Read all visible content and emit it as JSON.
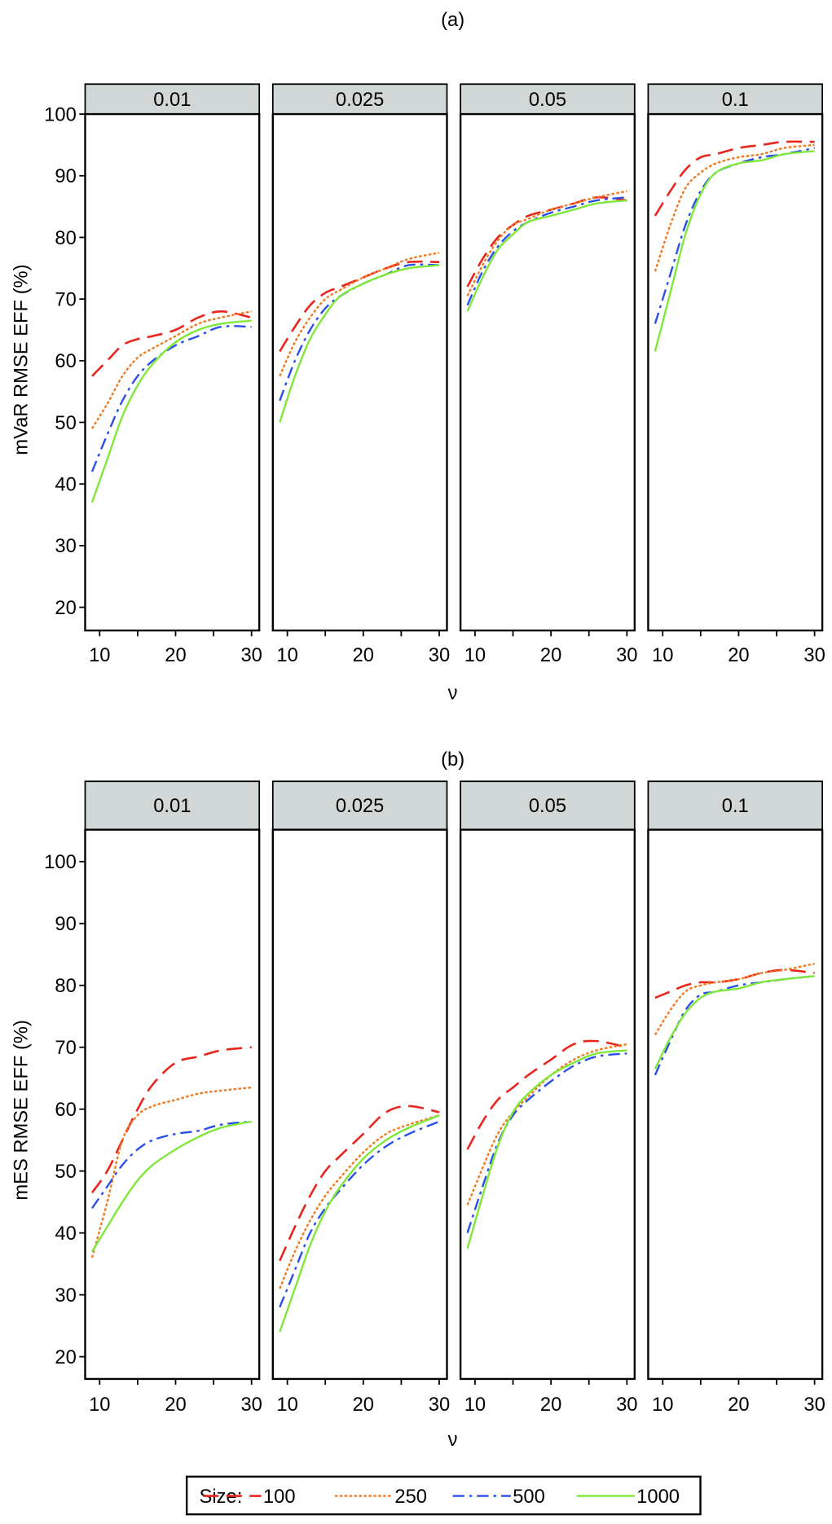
{
  "chart_data": [
    {
      "type": "line",
      "title": "(a)",
      "xlabel": "ν",
      "ylabel": "mVaR RMSE EFF (%)",
      "ylim": [
        16,
        104
      ],
      "xlim": [
        8,
        31
      ],
      "yticks": [
        20,
        30,
        40,
        50,
        60,
        70,
        80,
        90,
        100
      ],
      "xticks": [
        10,
        20,
        30
      ],
      "x": [
        9,
        11,
        13,
        15,
        17,
        20,
        23,
        26,
        30
      ],
      "panels": [
        {
          "label": "0.01",
          "series": [
            {
              "name": "100",
              "values": [
                57.5,
                60,
                62.5,
                63.5,
                64,
                65,
                67,
                68,
                67
              ]
            },
            {
              "name": "250",
              "values": [
                49,
                53,
                57.5,
                60.5,
                62,
                64,
                66,
                67,
                68
              ]
            },
            {
              "name": "500",
              "values": [
                42,
                48,
                53.5,
                57.5,
                60,
                62.5,
                64,
                65.5,
                65.5
              ]
            },
            {
              "name": "1000",
              "values": [
                37,
                44,
                51,
                56,
                59.5,
                63,
                65,
                66,
                66.5
              ]
            }
          ]
        },
        {
          "label": "0.025",
          "series": [
            {
              "name": "100",
              "values": [
                61.5,
                65.5,
                69,
                71,
                72,
                73.5,
                75,
                76,
                76
              ]
            },
            {
              "name": "250",
              "values": [
                57.5,
                63,
                67,
                70,
                71.5,
                73.5,
                75,
                76.5,
                77.5
              ]
            },
            {
              "name": "500",
              "values": [
                53.5,
                60,
                65,
                68.5,
                70.5,
                72.5,
                74,
                75.5,
                75.5
              ]
            },
            {
              "name": "1000",
              "values": [
                50,
                57.5,
                63.5,
                67.5,
                70.5,
                72.5,
                74,
                75,
                75.5
              ]
            }
          ]
        },
        {
          "label": "0.05",
          "series": [
            {
              "name": "100",
              "values": [
                72,
                76.5,
                80,
                82,
                83.5,
                84.5,
                85.5,
                86.5,
                86
              ]
            },
            {
              "name": "250",
              "values": [
                70.5,
                75.5,
                79.5,
                82,
                83,
                84.5,
                85.5,
                86.5,
                87.5
              ]
            },
            {
              "name": "500",
              "values": [
                69,
                74.5,
                78.5,
                81,
                82.5,
                84,
                85,
                86,
                86.5
              ]
            },
            {
              "name": "1000",
              "values": [
                68,
                73.5,
                78,
                80.5,
                82.5,
                83.5,
                84.5,
                85.5,
                86
              ]
            }
          ]
        },
        {
          "label": "0.1",
          "series": [
            {
              "name": "100",
              "values": [
                83.5,
                87.5,
                91,
                93,
                93.5,
                94.5,
                95,
                95.5,
                95.5
              ]
            },
            {
              "name": "250",
              "values": [
                74.5,
                82,
                88,
                90.5,
                92,
                93,
                93.5,
                94.5,
                95
              ]
            },
            {
              "name": "500",
              "values": [
                66,
                74,
                82,
                87.5,
                90.5,
                92,
                93,
                93.5,
                94.5
              ]
            },
            {
              "name": "1000",
              "values": [
                61.5,
                71,
                80.5,
                87,
                90.5,
                92,
                92.5,
                93.5,
                94
              ]
            }
          ]
        }
      ]
    },
    {
      "type": "line",
      "title": "(b)",
      "xlabel": "ν",
      "ylabel": "mES RMSE EFF (%)",
      "ylim": [
        16,
        105
      ],
      "xlim": [
        8,
        31
      ],
      "yticks": [
        20,
        30,
        40,
        50,
        60,
        70,
        80,
        90,
        100
      ],
      "xticks": [
        10,
        20,
        30
      ],
      "x": [
        9,
        11,
        13,
        15,
        17,
        20,
        23,
        26,
        30
      ],
      "panels": [
        {
          "label": "0.01",
          "series": [
            {
              "name": "100",
              "values": [
                46.5,
                50,
                55,
                60,
                64,
                67.5,
                68.5,
                69.5,
                70
              ]
            },
            {
              "name": "250",
              "values": [
                36,
                45,
                55,
                59,
                60.5,
                61.5,
                62.5,
                63,
                63.5
              ]
            },
            {
              "name": "500",
              "values": [
                44,
                47.5,
                51,
                53.5,
                55,
                56,
                56.5,
                57.5,
                58
              ]
            },
            {
              "name": "1000",
              "values": [
                37,
                41,
                45,
                48.5,
                51,
                53.5,
                55.5,
                57,
                58
              ]
            }
          ]
        },
        {
          "label": "0.025",
          "series": [
            {
              "name": "100",
              "values": [
                35.5,
                41,
                46,
                50,
                52.5,
                56,
                59.5,
                60.5,
                59.5
              ]
            },
            {
              "name": "250",
              "values": [
                31,
                37,
                42,
                46,
                49,
                53,
                56,
                57.5,
                59
              ]
            },
            {
              "name": "500",
              "values": [
                28,
                34,
                40,
                44,
                47,
                51,
                54,
                56,
                58
              ]
            },
            {
              "name": "1000",
              "values": [
                24,
                31,
                38,
                43.5,
                47.5,
                52,
                55,
                57,
                59
              ]
            }
          ]
        },
        {
          "label": "0.05",
          "series": [
            {
              "name": "100",
              "values": [
                53.5,
                58,
                61.5,
                63.5,
                65.5,
                68,
                70.5,
                71,
                70
              ]
            },
            {
              "name": "250",
              "values": [
                44.5,
                50.5,
                56,
                59.5,
                62,
                65.5,
                68,
                69.5,
                70.5
              ]
            },
            {
              "name": "500",
              "values": [
                40,
                47.5,
                54.5,
                59,
                61.5,
                64.5,
                67,
                68.5,
                69
              ]
            },
            {
              "name": "1000",
              "values": [
                37.5,
                46,
                54,
                59.5,
                62.5,
                65.5,
                67.5,
                69,
                69.5
              ]
            }
          ]
        },
        {
          "label": "0.1",
          "series": [
            {
              "name": "100",
              "values": [
                78,
                79,
                80,
                80.5,
                80.5,
                81,
                82,
                82.5,
                82
              ]
            },
            {
              "name": "250",
              "values": [
                72,
                76,
                79,
                80,
                80.5,
                81,
                82,
                82.5,
                83.5
              ]
            },
            {
              "name": "500",
              "values": [
                65.5,
                71,
                76,
                78.5,
                79,
                80,
                80.5,
                81,
                81.5
              ]
            },
            {
              "name": "1000",
              "values": [
                66.5,
                71.5,
                75.5,
                78,
                79,
                79.5,
                80.5,
                81,
                81.5
              ]
            }
          ]
        }
      ]
    }
  ],
  "legend": {
    "title": "Size:",
    "placement": "bottom",
    "entries": [
      {
        "label": "100",
        "color": "#e8261e",
        "style": "long-dash"
      },
      {
        "label": "250",
        "color": "#f07a22",
        "style": "dotted"
      },
      {
        "label": "500",
        "color": "#2a4ee8",
        "style": "dash-dot"
      },
      {
        "label": "1000",
        "color": "#7ee83a",
        "style": "solid"
      }
    ]
  }
}
